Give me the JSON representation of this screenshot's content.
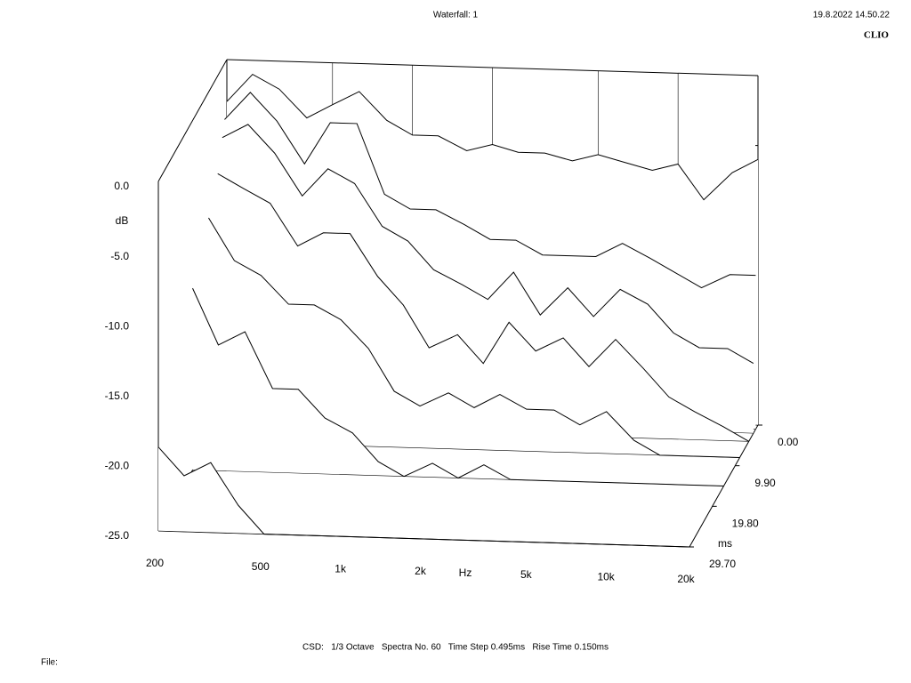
{
  "chart_data": {
    "type": "waterfall",
    "title": "Waterfall: 1",
    "date": "19.8.2022 14.50.22",
    "brand": "CLIO",
    "footer": "CSD:   1/3 Octave   Spectra No. 60   Time Step 0.495ms   Rise Time 0.150ms",
    "file_label": "File:",
    "x_label": "Hz",
    "y_label": "dB",
    "z_label": "ms",
    "log_x": true,
    "xlim": [
      200,
      20000
    ],
    "xticks": [
      200,
      500,
      {
        "value": 1000,
        "label": "1k"
      },
      {
        "value": 2000,
        "label": "2k"
      },
      {
        "value": 5000,
        "label": "5k"
      },
      {
        "value": 10000,
        "label": "10k"
      },
      {
        "value": 20000,
        "label": "20k"
      }
    ],
    "ylim": [
      -25,
      0
    ],
    "yticks": [
      {
        "value": 0,
        "label": "0.0"
      },
      {
        "value": -5,
        "label": "-5.0"
      },
      {
        "value": -10,
        "label": "-10.0"
      },
      {
        "value": -15,
        "label": "-15.0"
      },
      {
        "value": -20,
        "label": "-20.0"
      },
      {
        "value": -25,
        "label": "-25.0"
      }
    ],
    "zlim": [
      0,
      29.7
    ],
    "zticks": [
      {
        "value": 0,
        "label": "0.00"
      },
      {
        "value": 9.9,
        "label": "9.90"
      },
      {
        "value": 19.8,
        "label": "19.80"
      },
      {
        "value": 29.7,
        "label": "29.70"
      }
    ],
    "x": [
      200,
      250,
      315,
      400,
      500,
      630,
      800,
      1000,
      1250,
      1600,
      2000,
      2500,
      3150,
      4000,
      5000,
      6300,
      8000,
      10000,
      12500,
      16000,
      20000
    ],
    "z": [
      0,
      0.99,
      1.98,
      3.96,
      7.92,
      14.85,
      29.7
    ],
    "color": "#000000",
    "series": [
      {
        "values": [
          -3,
          -1,
          -2,
          -4,
          -3,
          -2,
          -4,
          -5,
          -5,
          -6,
          -5.5,
          -6,
          -6,
          -6.5,
          -6,
          -6.5,
          -7,
          -6.5,
          -9,
          -7,
          -6
        ]
      },
      {
        "values": [
          -4,
          -2,
          -4,
          -7,
          -4,
          -4,
          -9,
          -10,
          -10,
          -11,
          -12,
          -12,
          -13,
          -13,
          -13,
          -12,
          -13,
          -14,
          -15,
          -14,
          -14
        ]
      },
      {
        "values": [
          -5,
          -4,
          -6,
          -9,
          -7,
          -8,
          -11,
          -12,
          -14,
          -15,
          -16,
          -14,
          -17,
          -15,
          -17,
          -15,
          -16,
          -18,
          -19,
          -19,
          -20
        ]
      },
      {
        "values": [
          -7,
          -8,
          -9,
          -12,
          -11,
          -11,
          -14,
          -16,
          -19,
          -18,
          -20,
          -17,
          -19,
          -18,
          -20,
          -18,
          -20,
          -22,
          -23,
          -24,
          -25
        ]
      },
      {
        "values": [
          -9,
          -12,
          -13,
          -15,
          -15,
          -16,
          -18,
          -21,
          -22,
          -21,
          -22,
          -21,
          -22,
          -22,
          -23,
          -22,
          -24,
          -25,
          -25,
          -25,
          -25
        ]
      },
      {
        "values": [
          -12,
          -16,
          -15,
          -19,
          -19,
          -21,
          -22,
          -24,
          -25,
          -24,
          -25,
          -24,
          -25,
          -25,
          -25,
          -25,
          -25,
          -25,
          -25,
          -25,
          -25
        ]
      },
      {
        "values": [
          -19,
          -21,
          -20,
          -23,
          -25,
          -25,
          -25,
          -25,
          -25,
          -25,
          -25,
          -25,
          -25,
          -25,
          -25,
          -25,
          -25,
          -25,
          -25,
          -25,
          -25
        ]
      }
    ]
  }
}
